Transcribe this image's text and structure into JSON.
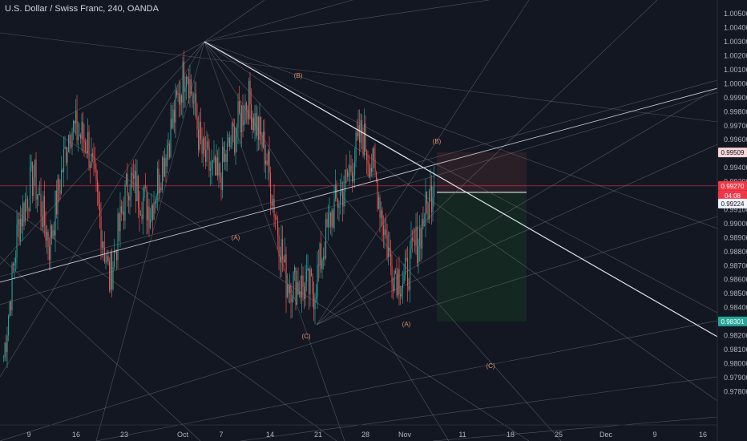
{
  "title": "U.S. Dollar / Swiss Franc, 240, OANDA",
  "colors": {
    "background": "#131722",
    "up": "#26a69a",
    "down": "#ef5350",
    "price_line": "#f23645",
    "trend": "#e0e3eb",
    "fan": "#868993",
    "wave_label": "#e0906a",
    "stop_zone": "#2a1f27",
    "target_zone": "#152721"
  },
  "chart_data": {
    "type": "candlestick",
    "y_range": [
      0.9775,
      1.0053
    ],
    "y_ticks": [
      "1.00500",
      "1.00400",
      "1.00300",
      "1.00200",
      "1.00100",
      "1.00000",
      "0.99900",
      "0.99800",
      "0.99700",
      "0.99600",
      "0.99400",
      "0.99300",
      "0.99100",
      "0.99000",
      "0.98900",
      "0.98800",
      "0.98700",
      "0.98600",
      "0.98500",
      "0.98400",
      "0.98200",
      "0.98100",
      "0.98000",
      "0.97900",
      "0.97800"
    ],
    "x_ticks": [
      "9",
      "16",
      "23",
      "Oct",
      "7",
      "14",
      "21",
      "28",
      "Nov",
      "11",
      "18",
      "25",
      "Dec",
      "9",
      "16"
    ],
    "price_badges": [
      {
        "label": "0.99509",
        "value": 0.99509,
        "kind": "stop"
      },
      {
        "label": "0.99270",
        "value": 0.9927,
        "kind": "current"
      },
      {
        "label": "04:08",
        "value": 0.992,
        "kind": "countdown"
      },
      {
        "label": "0.99224",
        "value": 0.99224,
        "kind": "entry"
      },
      {
        "label": "0.98301",
        "value": 0.98301,
        "kind": "target"
      }
    ],
    "wave_labels": [
      "(B)",
      "(B)",
      "(A)",
      "(C)",
      "(A)",
      "(C)"
    ],
    "anchors": [
      {
        "t": 0,
        "p": 0.9805
      },
      {
        "t": 12,
        "p": 0.9898
      },
      {
        "t": 25,
        "p": 0.9935
      },
      {
        "t": 38,
        "p": 0.9885
      },
      {
        "t": 55,
        "p": 0.997
      },
      {
        "t": 70,
        "p": 0.9958
      },
      {
        "t": 88,
        "p": 0.986
      },
      {
        "t": 104,
        "p": 0.9932
      },
      {
        "t": 122,
        "p": 0.991
      },
      {
        "t": 140,
        "p": 0.997
      },
      {
        "t": 152,
        "p": 1.0015
      },
      {
        "t": 165,
        "p": 0.995
      },
      {
        "t": 178,
        "p": 0.993
      },
      {
        "t": 192,
        "p": 0.9965
      },
      {
        "t": 203,
        "p": 0.999
      },
      {
        "t": 218,
        "p": 0.995
      },
      {
        "t": 235,
        "p": 0.986
      },
      {
        "t": 258,
        "p": 0.9852
      },
      {
        "t": 272,
        "p": 0.9905
      },
      {
        "t": 285,
        "p": 0.993
      },
      {
        "t": 298,
        "p": 0.9965
      },
      {
        "t": 310,
        "p": 0.993
      },
      {
        "t": 322,
        "p": 0.987
      },
      {
        "t": 333,
        "p": 0.9858
      },
      {
        "t": 345,
        "p": 0.989
      },
      {
        "t": 358,
        "p": 0.993
      }
    ]
  }
}
